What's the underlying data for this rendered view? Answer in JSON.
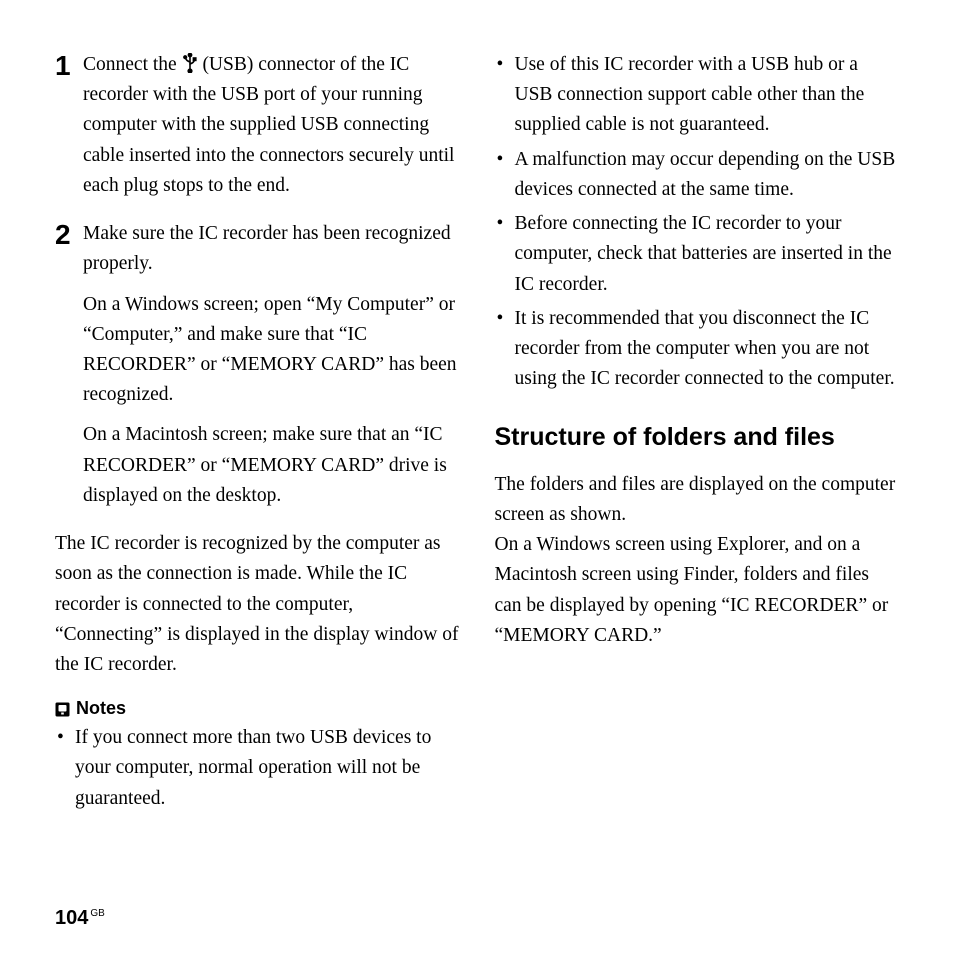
{
  "left": {
    "steps": [
      {
        "num": "1",
        "paragraphs": [
          "Connect the {usb} (USB) connector of the IC recorder with the USB port of your running computer with the supplied USB connecting cable inserted into the connectors securely until each plug stops to the end."
        ]
      },
      {
        "num": "2",
        "paragraphs": [
          "Make sure the IC recorder has been recognized properly.",
          "On a Windows screen; open “My Computer” or “Computer,” and make sure that “IC RECORDER” or “MEMORY CARD” has been recognized.",
          "On a Macintosh screen; make sure that an “IC RECORDER” or “MEMORY CARD” drive is displayed on the desktop."
        ]
      }
    ],
    "paragraph": "The IC recorder is recognized by the computer as soon as the connection is made. While the IC recorder is connected to the computer, “Connecting” is displayed in the display window of the IC recorder.",
    "notes_label": "Notes",
    "notes": [
      "If you connect more than two USB devices to your computer, normal operation will not be guaranteed."
    ]
  },
  "right": {
    "bullets": [
      "Use of this IC recorder with a USB hub or a USB connection support cable other than the supplied cable is not guaranteed.",
      "A malfunction may occur depending on the USB devices connected at the same time.",
      "Before connecting the IC recorder to your computer, check that batteries are inserted in the IC recorder.",
      "It is recommended that you disconnect the IC recorder from the computer when you are not using the IC recorder connected to the computer."
    ],
    "heading": "Structure of folders and files",
    "body": "The folders and files are displayed on the computer screen as shown.\nOn a Windows screen using Explorer, and on a Macintosh screen using Finder, folders and files can be displayed by opening “IC RECORDER” or “MEMORY CARD.”"
  },
  "footer": {
    "page": "104",
    "suffix": "GB"
  }
}
